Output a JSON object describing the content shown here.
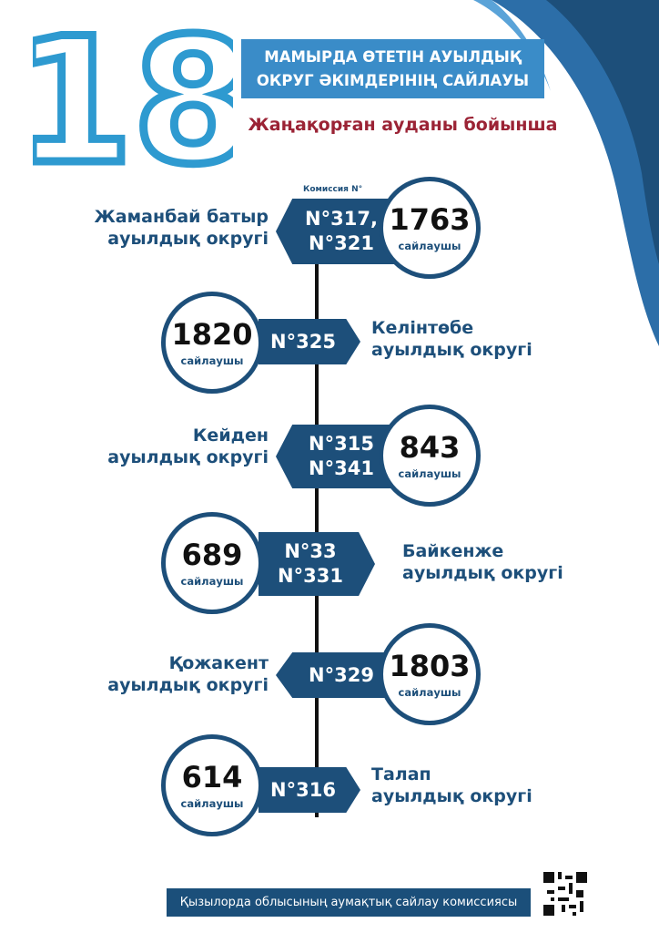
{
  "header": {
    "big_number": "18",
    "title_line1": "МАМЫРДА ӨТЕТІН АУЫЛДЫҚ",
    "title_line2": "ОКРУГ ӘКІМДЕРІНІҢ САЙЛАУЫ",
    "subtitle": "Жаңақорған ауданы бойынша"
  },
  "commission_caption": "Комиссия N°",
  "voters_unit": "сайлаушы",
  "districts": [
    {
      "name1": "Жаманбай батыр",
      "name2": "ауылдық округі",
      "commission1": "N°317,",
      "commission2": "N°321",
      "voters": "1763"
    },
    {
      "name1": "Келінтөбе",
      "name2": "ауылдық округі",
      "commission1": "N°325",
      "commission2": "",
      "voters": "1820"
    },
    {
      "name1": "Кейден",
      "name2": "ауылдық округі",
      "commission1": "N°315",
      "commission2": "N°341",
      "voters": "843"
    },
    {
      "name1": "Байкенже",
      "name2": "ауылдық округі",
      "commission1": "N°33",
      "commission2": "N°331",
      "voters": "689"
    },
    {
      "name1": "Қожакент",
      "name2": "ауылдық округі",
      "commission1": "N°329",
      "commission2": "",
      "voters": "1803"
    },
    {
      "name1": "Талап",
      "name2": "ауылдық округі",
      "commission1": "N°316",
      "commission2": "",
      "voters": "614"
    }
  ],
  "footer": {
    "text": "Қызылорда облысының аумақтық сайлау комиссиясы"
  },
  "colors": {
    "navy": "#1d4f7a",
    "light_blue": "#3a8cc8",
    "outline_blue": "#2e9ad0",
    "red": "#9b2335"
  }
}
